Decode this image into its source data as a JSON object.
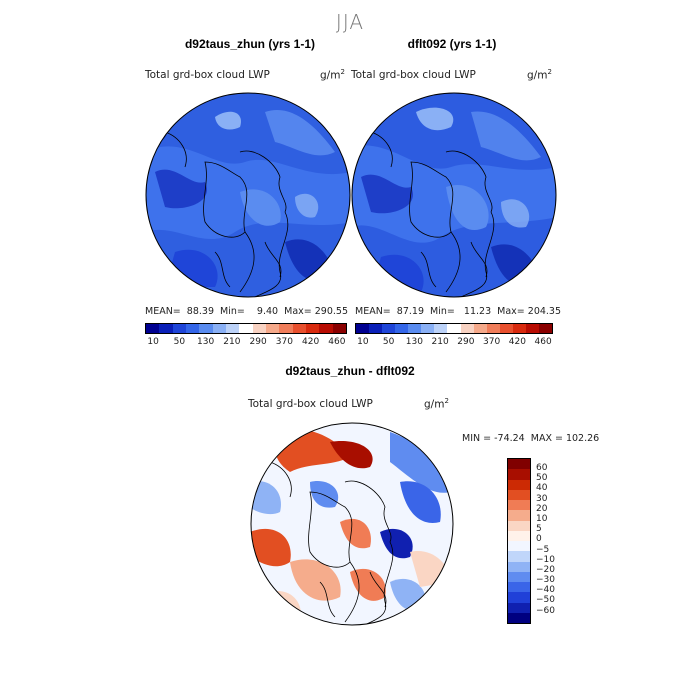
{
  "season_title": "JJA",
  "colors": {
    "abs_palette": [
      "#000090",
      "#0a1fb8",
      "#1f45d8",
      "#3466e8",
      "#5a8cf0",
      "#8ab0f5",
      "#bcd2f8",
      "#ffffff",
      "#f8d2c2",
      "#f5a98a",
      "#f07d5a",
      "#e8502e",
      "#d82a0e",
      "#b80c02",
      "#8a0000"
    ],
    "diff_palette": [
      "#000080",
      "#1020b0",
      "#2040d8",
      "#3a65e8",
      "#5f8cf0",
      "#8fb3f5",
      "#c0d6fa",
      "#f2f6ff",
      "#fff2ea",
      "#fad6c4",
      "#f5ac8c",
      "#f07c55",
      "#e24f22",
      "#cc2a04",
      "#a80e00",
      "#800000"
    ]
  },
  "panels": [
    {
      "title": "d92taus_zhun (yrs 1-1)",
      "variable": "Total grd-box cloud LWP",
      "unit_base": "g/m",
      "unit_exp": "2",
      "stats": "MEAN=  88.39  Min=    9.40  Max= 290.55"
    },
    {
      "title": "dflt092 (yrs 1-1)",
      "variable": "Total grd-box cloud LWP",
      "unit_base": "g/m",
      "unit_exp": "2",
      "stats": "MEAN=  87.19  Min=   11.23  Max= 204.35"
    }
  ],
  "colorbar_ticks": [
    "10",
    "50",
    "130",
    "210",
    "290",
    "370",
    "420",
    "460"
  ],
  "diff": {
    "title": "d92taus_zhun - dflt092",
    "variable": "Total grd-box cloud LWP",
    "unit_base": "g/m",
    "unit_exp": "2",
    "minmax": "MIN = -74.24  MAX = 102.26",
    "colorbar_ticks": [
      "60",
      "50",
      "40",
      "30",
      "20",
      "10",
      "5",
      "0",
      "−5",
      "−10",
      "−20",
      "−30",
      "−40",
      "−50",
      "−60"
    ]
  },
  "chart_data": [
    {
      "type": "heatmap",
      "title": "d92taus_zhun (yrs 1-1)",
      "subtitle": "Total grd-box cloud LWP",
      "units": "g/m2",
      "projection": "north polar stereographic",
      "stats": {
        "mean": 88.39,
        "min": 9.4,
        "max": 290.55
      },
      "color_levels": [
        10,
        50,
        130,
        210,
        290,
        370,
        420,
        460
      ]
    },
    {
      "type": "heatmap",
      "title": "dflt092 (yrs 1-1)",
      "subtitle": "Total grd-box cloud LWP",
      "units": "g/m2",
      "projection": "north polar stereographic",
      "stats": {
        "mean": 87.19,
        "min": 11.23,
        "max": 204.35
      },
      "color_levels": [
        10,
        50,
        130,
        210,
        290,
        370,
        420,
        460
      ]
    },
    {
      "type": "heatmap",
      "title": "d92taus_zhun - dflt092",
      "subtitle": "Total grd-box cloud LWP",
      "units": "g/m2",
      "projection": "north polar stereographic",
      "stats": {
        "min": -74.24,
        "max": 102.26
      },
      "color_levels": [
        -60,
        -50,
        -40,
        -30,
        -20,
        -10,
        -5,
        0,
        5,
        10,
        20,
        30,
        40,
        50,
        60
      ]
    }
  ]
}
